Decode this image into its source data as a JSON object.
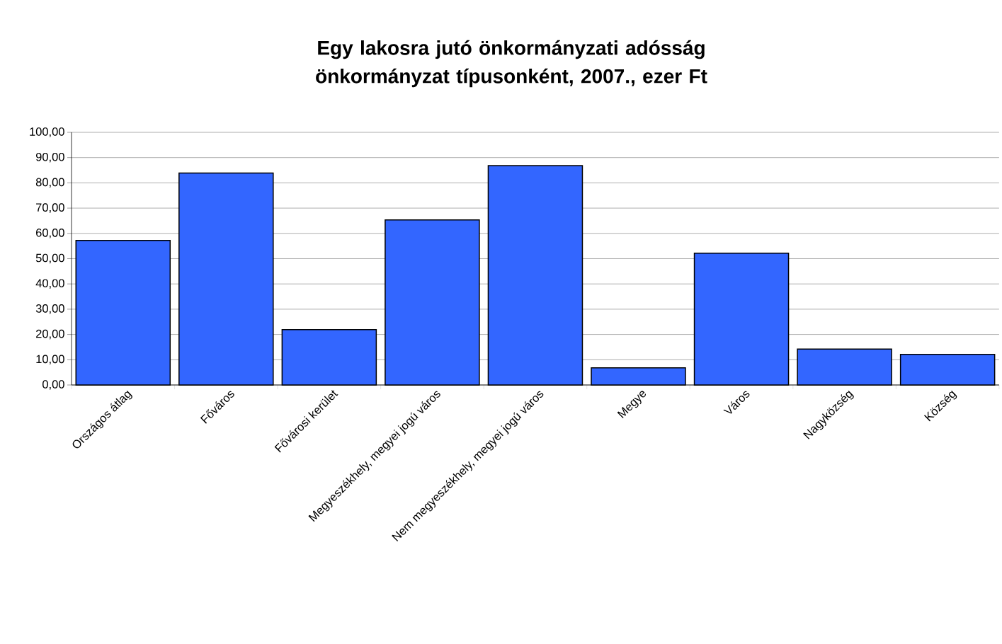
{
  "chart_data": {
    "type": "bar",
    "title": "Egy lakosra jutó önkormányzati adósság önkormányzat típusonként, 2007., ezer Ft",
    "categories": [
      "Országos átlag",
      "Főváros",
      "Fővárosi kerület",
      "Megyeszékhely, megyei jogú város",
      "Nem megyeszékhely, megyei jogú város",
      "Megye",
      "Város",
      "Nagyközség",
      "Község"
    ],
    "values": [
      57.2,
      83.9,
      21.9,
      65.3,
      86.8,
      6.8,
      52.2,
      14.2,
      12.1
    ],
    "color": "#3366ff",
    "ylim": [
      0,
      100
    ],
    "yticks": [
      {
        "value": 0,
        "label": "0,00"
      },
      {
        "value": 10,
        "label": "10,00"
      },
      {
        "value": 20,
        "label": "20,00"
      },
      {
        "value": 30,
        "label": "30,00"
      },
      {
        "value": 40,
        "label": "40,00"
      },
      {
        "value": 50,
        "label": "50,00"
      },
      {
        "value": 60,
        "label": "60,00"
      },
      {
        "value": 70,
        "label": "70,00"
      },
      {
        "value": 80,
        "label": "80,00"
      },
      {
        "value": 90,
        "label": "90,00"
      },
      {
        "value": 100,
        "label": "100,00"
      }
    ],
    "grid": "y"
  }
}
